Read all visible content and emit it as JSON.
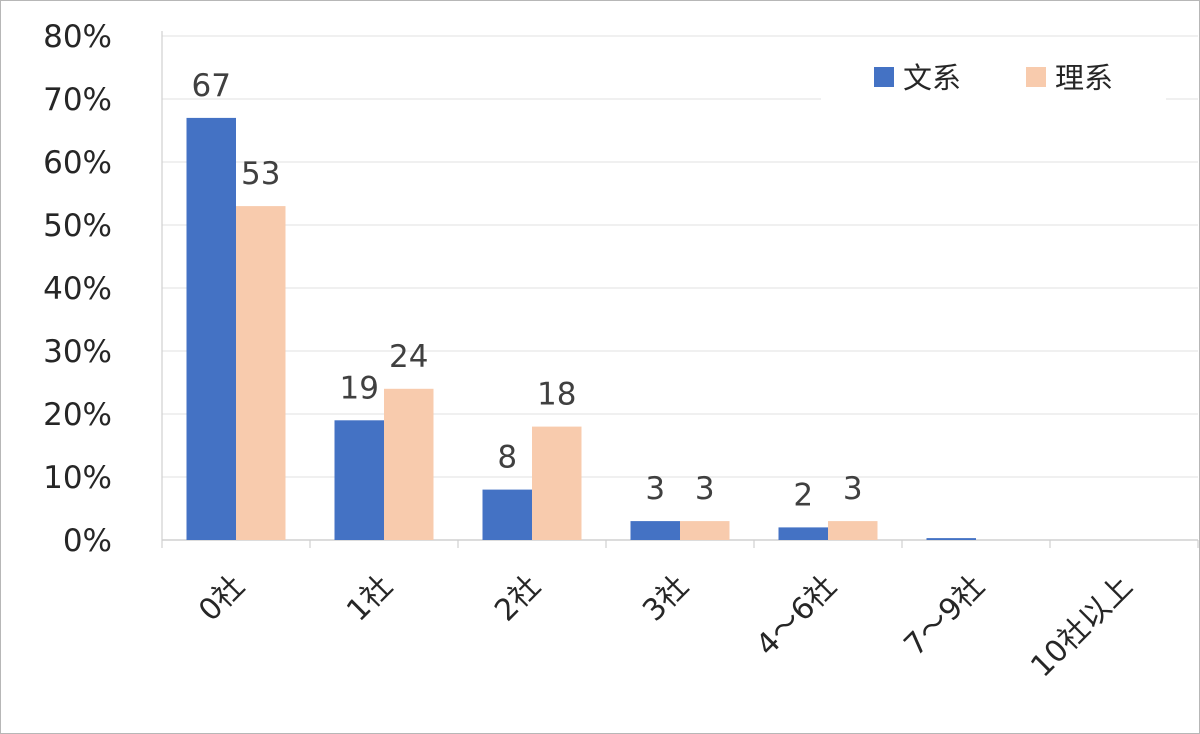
{
  "chart_data": {
    "type": "bar",
    "categories": [
      "0社",
      "1社",
      "2社",
      "3社",
      "4～6社",
      "7～9社",
      "10社以上"
    ],
    "y_ticks": [
      "0%",
      "10%",
      "20%",
      "30%",
      "40%",
      "50%",
      "60%",
      "70%",
      "80%"
    ],
    "ylim": [
      0,
      80
    ],
    "grid": true,
    "legend_position": "top-right",
    "series": [
      {
        "name": "文系",
        "color": "#4472C4",
        "values": [
          67,
          19,
          8,
          3,
          2,
          0.3,
          0
        ],
        "data_labels": [
          "67",
          "19",
          "8",
          "3",
          "2",
          "",
          ""
        ]
      },
      {
        "name": "理系",
        "color": "#F8CBAD",
        "values": [
          53,
          24,
          18,
          3,
          3,
          0,
          0
        ],
        "data_labels": [
          "53",
          "24",
          "18",
          "3",
          "3",
          "",
          ""
        ]
      }
    ]
  }
}
